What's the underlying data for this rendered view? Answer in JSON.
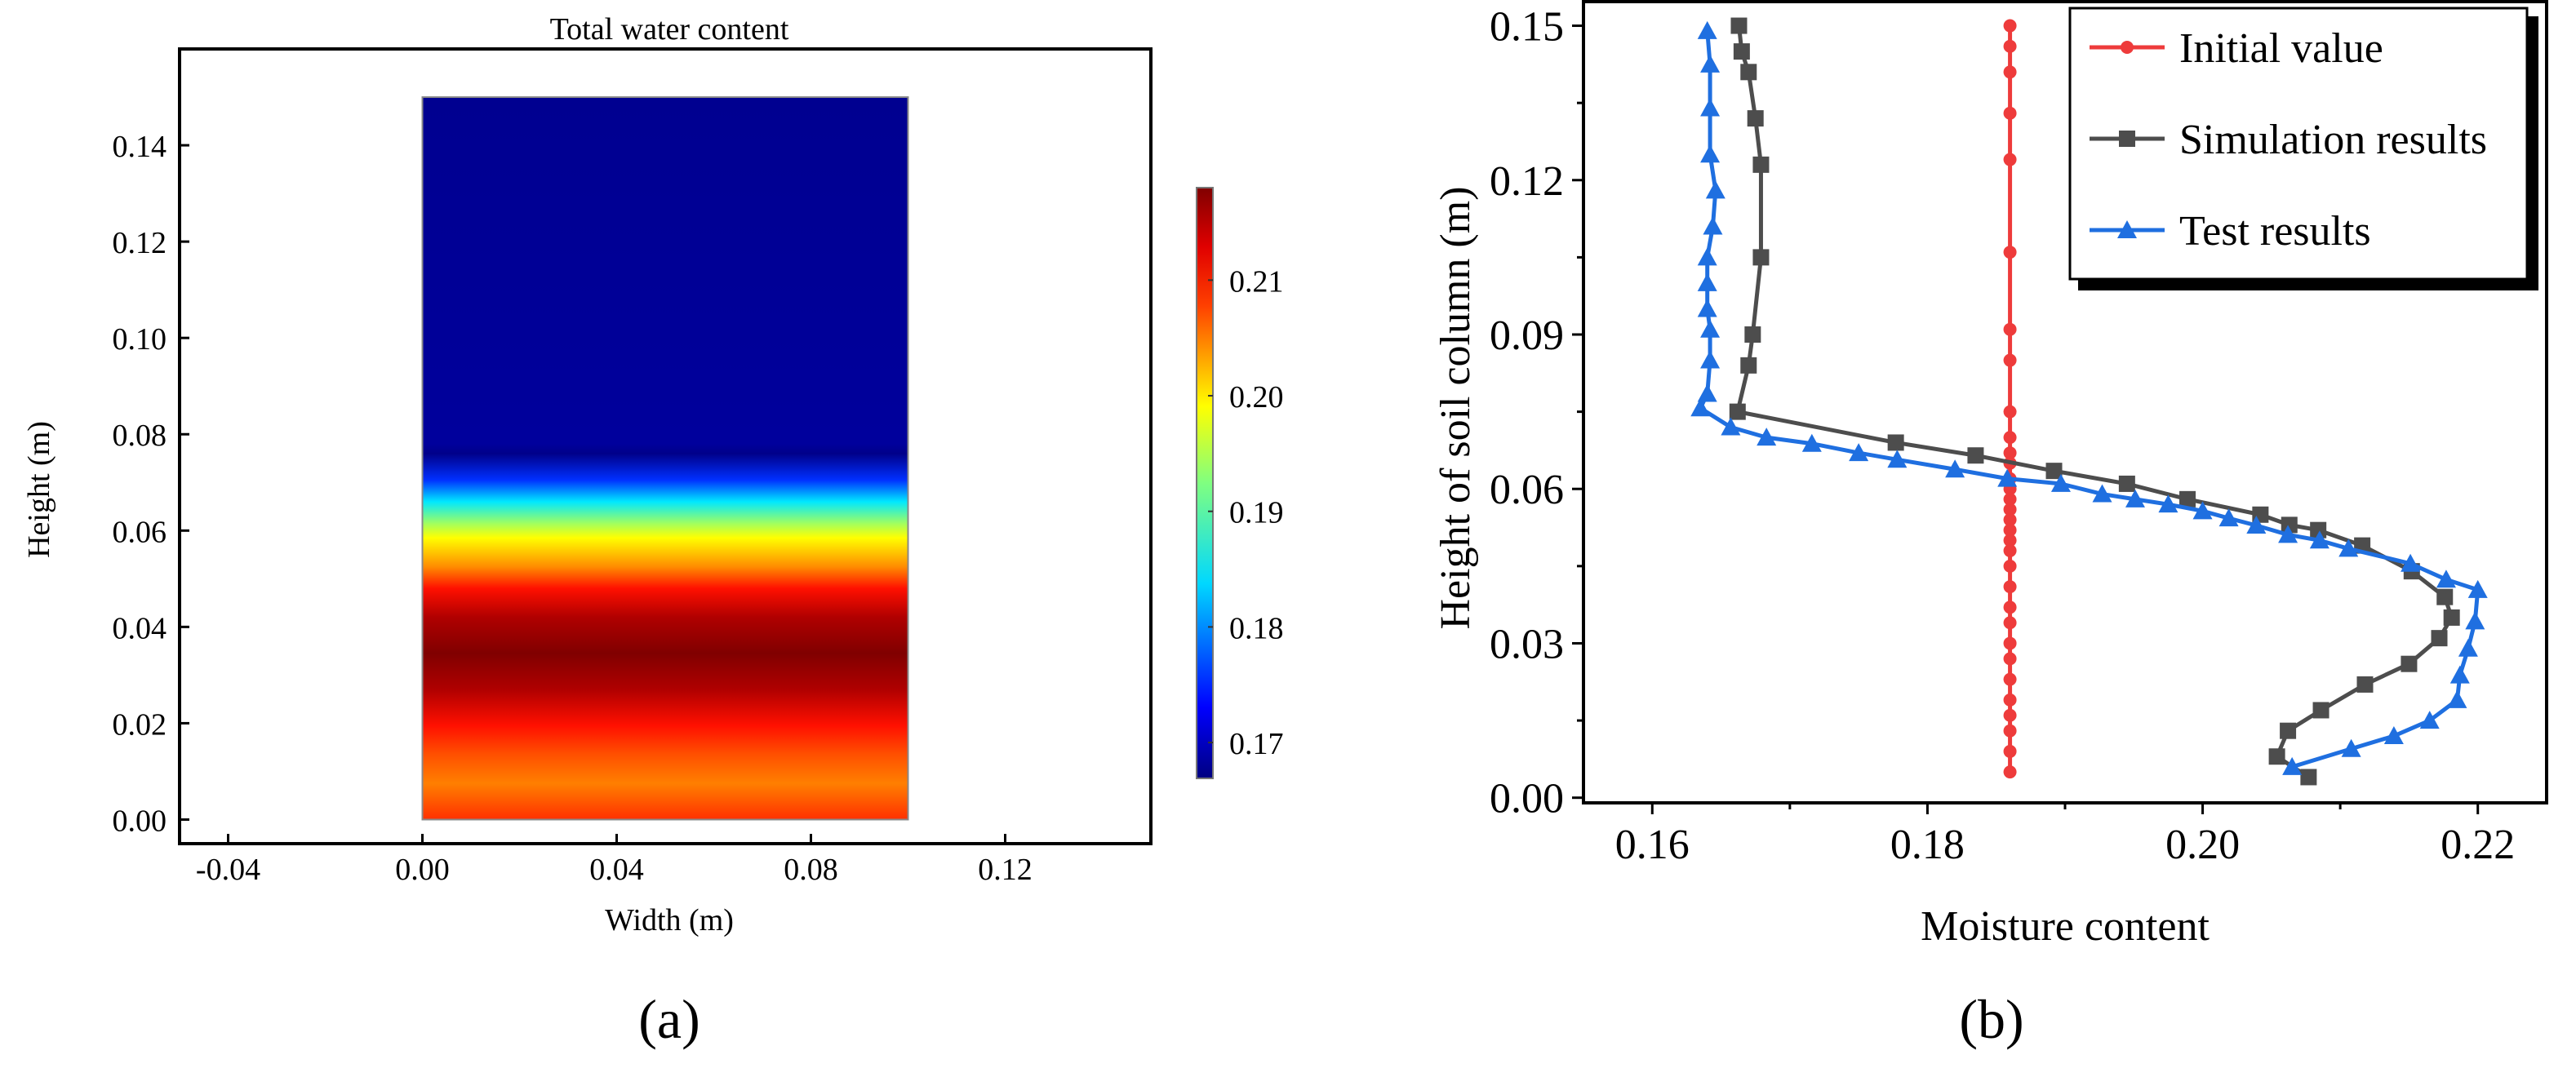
{
  "panels": {
    "a": "(a)",
    "b": "(b)"
  },
  "chart_data": [
    {
      "type": "heatmap",
      "title": "Total water content",
      "xlabel": "Width (m)",
      "ylabel": "Height (m)",
      "xlim": [
        -0.05,
        0.15
      ],
      "ylim": [
        -0.005,
        0.16
      ],
      "xticks": [
        "-0.04",
        "0.00",
        "0.04",
        "0.08",
        "0.12"
      ],
      "xtick_values": [
        -0.04,
        0.0,
        0.04,
        0.08,
        0.12
      ],
      "yticks": [
        "0.00",
        "0.02",
        "0.04",
        "0.06",
        "0.08",
        "0.10",
        "0.12",
        "0.14"
      ],
      "ytick_values": [
        0.0,
        0.02,
        0.04,
        0.06,
        0.08,
        0.1,
        0.12,
        0.14
      ],
      "domain": {
        "x": [
          0.0,
          0.1
        ],
        "y": [
          0.0,
          0.15
        ]
      },
      "colormap": "jet",
      "colorbar": {
        "range": [
          0.1669,
          0.218
        ],
        "ticks": [
          "0.17",
          "0.18",
          "0.19",
          "0.20",
          "0.21"
        ],
        "tick_values": [
          0.17,
          0.18,
          0.19,
          0.2,
          0.21
        ]
      },
      "profile_height_to_color": [
        {
          "y": 0.15,
          "color": "#000090"
        },
        {
          "y": 0.078,
          "color": "#00009c"
        },
        {
          "y": 0.076,
          "color": "#00008a"
        },
        {
          "y": 0.0705,
          "color": "#0030ff"
        },
        {
          "y": 0.066,
          "color": "#00e8ff"
        },
        {
          "y": 0.0615,
          "color": "#a0ff60"
        },
        {
          "y": 0.0585,
          "color": "#ffff00"
        },
        {
          "y": 0.0525,
          "color": "#ff8c00"
        },
        {
          "y": 0.048,
          "color": "#ff1000"
        },
        {
          "y": 0.042,
          "color": "#b00000"
        },
        {
          "y": 0.0345,
          "color": "#800000"
        },
        {
          "y": 0.027,
          "color": "#b00000"
        },
        {
          "y": 0.0195,
          "color": "#ff1000"
        },
        {
          "y": 0.0135,
          "color": "#ff5000"
        },
        {
          "y": 0.0075,
          "color": "#ff7f00"
        },
        {
          "y": 0.0,
          "color": "#ff3000"
        }
      ]
    },
    {
      "type": "line",
      "xlabel": "Moisture content",
      "ylabel": "Height of soil column (m)",
      "xlim": [
        0.155,
        0.225
      ],
      "ylim": [
        -0.001,
        0.155
      ],
      "xticks": [
        "0.16",
        "0.18",
        "0.20",
        "0.22"
      ],
      "xtick_values": [
        0.16,
        0.18,
        0.2,
        0.22
      ],
      "yticks": [
        "0.00",
        "0.03",
        "0.06",
        "0.09",
        "0.12",
        "0.15"
      ],
      "ytick_values": [
        0.0,
        0.03,
        0.06,
        0.09,
        0.12,
        0.15
      ],
      "legend_position": "top-right",
      "series": [
        {
          "name": "Initial value",
          "color": "#ee3b3b",
          "marker": "circle",
          "x": [
            0.186,
            0.186,
            0.186,
            0.186,
            0.186,
            0.186,
            0.186,
            0.186,
            0.186,
            0.186,
            0.186,
            0.186,
            0.186,
            0.186,
            0.186,
            0.186,
            0.186,
            0.186,
            0.186,
            0.186,
            0.186,
            0.186,
            0.186,
            0.186,
            0.186,
            0.186,
            0.186,
            0.186,
            0.186,
            0.186,
            0.186,
            0.186
          ],
          "y": [
            0.15,
            0.146,
            0.141,
            0.133,
            0.124,
            0.106,
            0.091,
            0.085,
            0.075,
            0.07,
            0.067,
            0.065,
            0.062,
            0.06,
            0.058,
            0.056,
            0.054,
            0.052,
            0.05,
            0.048,
            0.045,
            0.041,
            0.037,
            0.034,
            0.03,
            0.027,
            0.023,
            0.019,
            0.016,
            0.013,
            0.009,
            0.005
          ]
        },
        {
          "name": "Simulation results",
          "color": "#4d4d4d",
          "marker": "square",
          "x": [
            0.1663,
            0.1665,
            0.167,
            0.1675,
            0.1679,
            0.1679,
            0.1673,
            0.167,
            0.1662,
            0.1777,
            0.1835,
            0.1892,
            0.1945,
            0.1989,
            0.2042,
            0.2063,
            0.2084,
            0.2116,
            0.2152,
            0.2176,
            0.2181,
            0.2172,
            0.215,
            0.2118,
            0.2086,
            0.2062,
            0.2054,
            0.2077
          ],
          "y": [
            0.15,
            0.145,
            0.141,
            0.132,
            0.123,
            0.105,
            0.09,
            0.084,
            0.075,
            0.069,
            0.0665,
            0.0635,
            0.061,
            0.058,
            0.055,
            0.053,
            0.052,
            0.049,
            0.044,
            0.039,
            0.035,
            0.031,
            0.026,
            0.022,
            0.017,
            0.013,
            0.008,
            0.004
          ]
        },
        {
          "name": "Test results",
          "color": "#1f6fe0",
          "marker": "triangle",
          "x": [
            0.164,
            0.1642,
            0.1642,
            0.1642,
            0.1646,
            0.1644,
            0.164,
            0.164,
            0.164,
            0.1642,
            0.1642,
            0.164,
            0.1635,
            0.1657,
            0.1683,
            0.1716,
            0.175,
            0.1778,
            0.182,
            0.1858,
            0.1897,
            0.1927,
            0.1951,
            0.1975,
            0.2,
            0.2019,
            0.2039,
            0.2062,
            0.2085,
            0.2106,
            0.2151,
            0.2177,
            0.22,
            0.2198,
            0.2193,
            0.2187,
            0.2185,
            0.2165,
            0.2139,
            0.2108,
            0.2065
          ],
          "y": [
            0.149,
            0.1425,
            0.134,
            0.125,
            0.118,
            0.111,
            0.105,
            0.1,
            0.095,
            0.091,
            0.085,
            0.0785,
            0.0757,
            0.072,
            0.07,
            0.0688,
            0.067,
            0.0657,
            0.0638,
            0.062,
            0.061,
            0.059,
            0.058,
            0.057,
            0.0557,
            0.0543,
            0.0529,
            0.0511,
            0.05,
            0.0484,
            0.0455,
            0.0424,
            0.0404,
            0.0343,
            0.029,
            0.0238,
            0.019,
            0.015,
            0.012,
            0.0095,
            0.006
          ]
        }
      ]
    }
  ]
}
